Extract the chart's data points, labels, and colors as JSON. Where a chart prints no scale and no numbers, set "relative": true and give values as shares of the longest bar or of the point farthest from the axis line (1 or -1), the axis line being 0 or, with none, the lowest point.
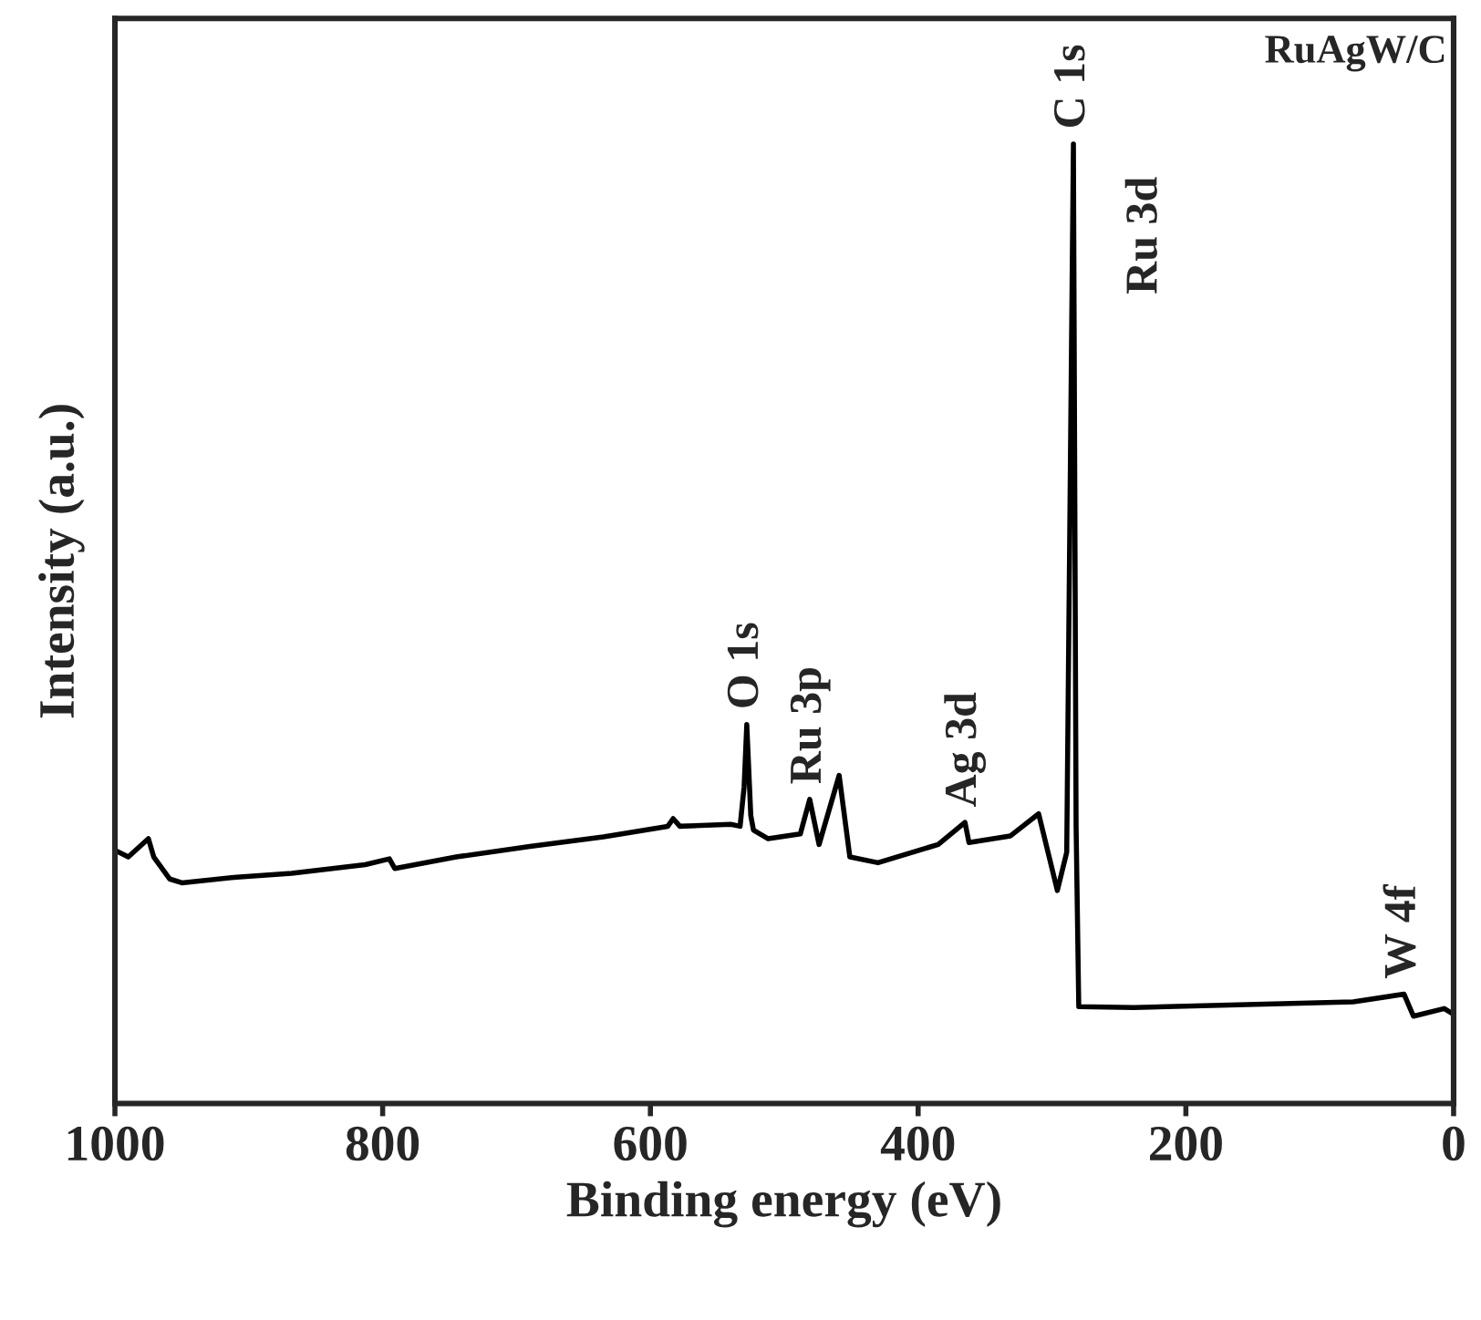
{
  "chart_data": {
    "type": "line",
    "relative": true,
    "xlabel": "Binding energy (eV)",
    "ylabel": "Intensity (a.u.)",
    "xlim": [
      1000,
      0
    ],
    "xticks": [
      1000,
      800,
      600,
      400,
      200,
      0
    ],
    "tick_labels": "x",
    "grid": false,
    "legend": false,
    "series": [
      {
        "color": "#000000",
        "x": [
          1000,
          990,
          975,
          971,
          959,
          950,
          909,
          868,
          813,
          795,
          791,
          745,
          690,
          635,
          587,
          583,
          578,
          540,
          533,
          530,
          528,
          525,
          523,
          512,
          488,
          481,
          474,
          459,
          451,
          430,
          385,
          365,
          362,
          331,
          310,
          296,
          289,
          284,
          282,
          280,
          239,
          75,
          37,
          30,
          7,
          0
        ],
        "values": [
          0.264,
          0.257,
          0.276,
          0.257,
          0.234,
          0.23,
          0.236,
          0.24,
          0.249,
          0.255,
          0.245,
          0.257,
          0.268,
          0.278,
          0.289,
          0.297,
          0.289,
          0.291,
          0.289,
          0.33,
          0.395,
          0.3,
          0.285,
          0.276,
          0.281,
          0.317,
          0.27,
          0.342,
          0.257,
          0.251,
          0.27,
          0.293,
          0.272,
          0.279,
          0.302,
          0.222,
          0.262,
          1.0,
          0.289,
          0.101,
          0.1,
          0.106,
          0.114,
          0.091,
          0.099,
          0.093
        ]
      }
    ],
    "annotations": [
      {
        "text": "O 1s",
        "x": 528,
        "y": 0.395
      },
      {
        "text": "Ru 3p",
        "x": 481,
        "y": 0.317
      },
      {
        "text": "Ag 3d",
        "x": 365,
        "y": 0.293
      },
      {
        "text": "C 1s",
        "x": 284,
        "y": 1.0
      },
      {
        "text": "W 4f",
        "x": 37,
        "y": 0.114
      },
      "Ru 3d",
      "RuAgW/C"
    ]
  }
}
